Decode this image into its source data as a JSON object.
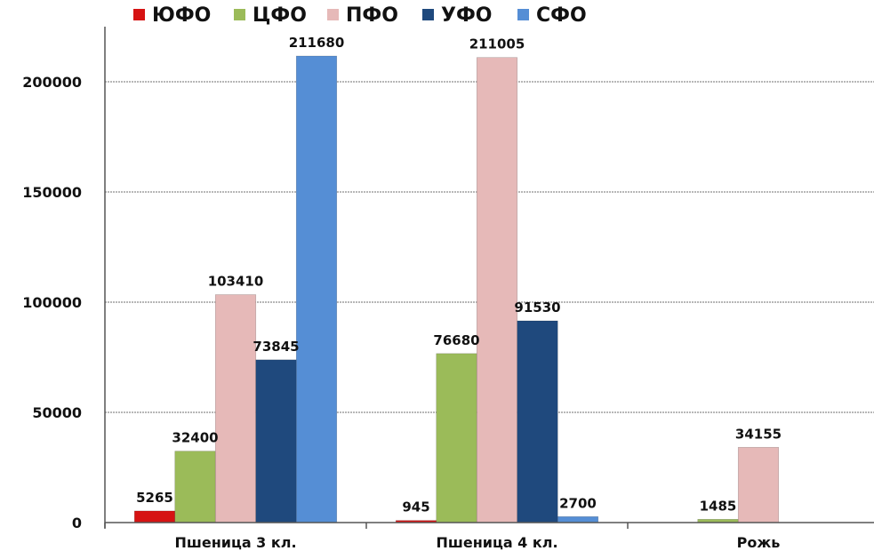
{
  "chart_data": {
    "type": "bar",
    "title": "",
    "xlabel": "",
    "ylabel": "",
    "categories": [
      "Пшеница 3 кл.",
      "Пшеница 4 кл.",
      "Рожь"
    ],
    "series": [
      {
        "name": "ЮФО",
        "color": "#d61313",
        "values": [
          5265,
          945,
          null
        ],
        "labels": [
          "5265",
          "945",
          ""
        ]
      },
      {
        "name": "ЦФО",
        "color": "#9bbb59",
        "values": [
          32400,
          76680,
          1485
        ],
        "labels": [
          "32400",
          "76680",
          "1485"
        ]
      },
      {
        "name": "ПФО",
        "color": "#e6b9b8",
        "values": [
          103410,
          211005,
          34155
        ],
        "labels": [
          "103410",
          "211005",
          "34155"
        ]
      },
      {
        "name": "УФО",
        "color": "#1f497d",
        "values": [
          73845,
          91530,
          null
        ],
        "labels": [
          "73845",
          "91530",
          ""
        ]
      },
      {
        "name": "СФО",
        "color": "#558ed5",
        "values": [
          211680,
          2700,
          null
        ],
        "labels": [
          "211680",
          "2700",
          ""
        ]
      }
    ],
    "ylim": [
      0,
      230000
    ],
    "yticks": [
      0,
      50000,
      100000,
      150000,
      200000
    ],
    "ytick_labels": [
      "0",
      "50000",
      "100000",
      "150000",
      "200000"
    ],
    "grid": true,
    "legend_position": "top"
  }
}
